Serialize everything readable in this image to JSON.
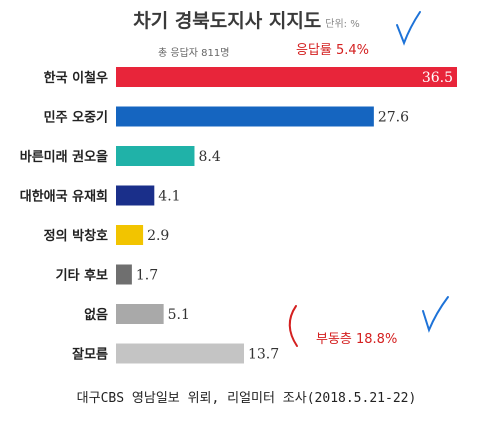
{
  "title": "차기 경북도지사 지지도",
  "unit": "단위: %",
  "subtitle": "총 응답자 811명",
  "response_rate": "응답률 5.4%",
  "undecided_note": "부동층 18.8%",
  "footer": "대구CBS 영남일보 위뢰, 리얼미터 조사(2018.5.21-22)",
  "colors": {
    "rep": "#e8253a",
    "dem": "#1565c0",
    "bareun": "#20b2a8",
    "daehan": "#1a2f8a",
    "justice": "#f2c400",
    "other": "#6f6f6f",
    "none": "#a9a9a9",
    "unknown": "#c4c4c4",
    "annotation": "#d42020",
    "check": "#1e73d8"
  },
  "chart_data": {
    "type": "bar",
    "orientation": "horizontal",
    "title": "차기 경북도지사 지지도",
    "unit": "%",
    "categories": [
      "한국 이철우",
      "민주 오중기",
      "바른미래 권오을",
      "대한애국 유재희",
      "정의 박창호",
      "기타 후보",
      "없음",
      "잘모름"
    ],
    "values": [
      36.5,
      27.6,
      8.4,
      4.1,
      2.9,
      1.7,
      5.1,
      13.7
    ],
    "value_labels": [
      "36.5",
      "27.6",
      "8.4",
      "4.1",
      "2.9",
      "1.7",
      "5.1",
      "13.7"
    ],
    "bar_colors": [
      "#e8253a",
      "#1565c0",
      "#20b2a8",
      "#1a2f8a",
      "#f2c400",
      "#6f6f6f",
      "#a9a9a9",
      "#c4c4c4"
    ],
    "xlim": [
      0,
      36.5
    ],
    "grid": false,
    "legend": "none"
  }
}
